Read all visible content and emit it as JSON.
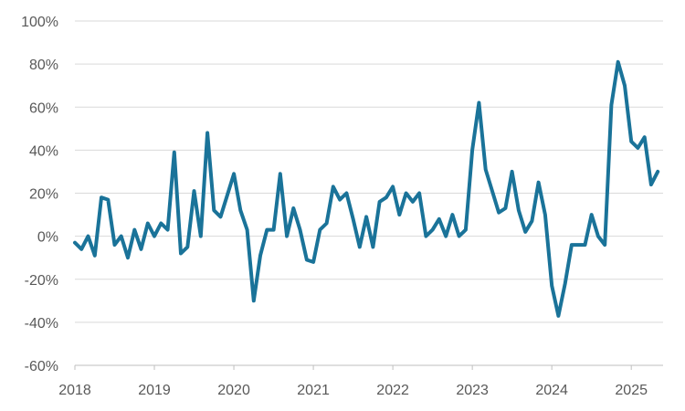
{
  "chart_data": {
    "type": "line",
    "title": "",
    "xlabel": "",
    "ylabel": "",
    "y_unit": "%",
    "ylim": [
      -60,
      100
    ],
    "y_ticks": [
      100,
      80,
      60,
      40,
      20,
      0,
      -20,
      -40,
      -60
    ],
    "y_tick_labels": [
      "100%",
      "80%",
      "60%",
      "40%",
      "20%",
      "0%",
      "-20%",
      "-40%",
      "-60%"
    ],
    "xlim": [
      2018.0,
      2025.4
    ],
    "x_ticks": [
      2018,
      2019,
      2020,
      2021,
      2022,
      2023,
      2024,
      2025
    ],
    "x_tick_labels": [
      "2018",
      "2019",
      "2020",
      "2021",
      "2022",
      "2023",
      "2024",
      "2025"
    ],
    "grid": true,
    "legend": "none",
    "series": [
      {
        "color": "#1A7399",
        "x": [
          2018.0,
          2018.083,
          2018.167,
          2018.25,
          2018.333,
          2018.417,
          2018.5,
          2018.583,
          2018.667,
          2018.75,
          2018.833,
          2018.917,
          2019.0,
          2019.083,
          2019.167,
          2019.25,
          2019.333,
          2019.417,
          2019.5,
          2019.583,
          2019.667,
          2019.75,
          2019.833,
          2019.917,
          2020.0,
          2020.083,
          2020.167,
          2020.25,
          2020.333,
          2020.417,
          2020.5,
          2020.583,
          2020.667,
          2020.75,
          2020.833,
          2020.917,
          2021.0,
          2021.083,
          2021.167,
          2021.25,
          2021.333,
          2021.417,
          2021.5,
          2021.583,
          2021.667,
          2021.75,
          2021.833,
          2021.917,
          2022.0,
          2022.083,
          2022.167,
          2022.25,
          2022.333,
          2022.417,
          2022.5,
          2022.583,
          2022.667,
          2022.75,
          2022.833,
          2022.917,
          2023.0,
          2023.083,
          2023.167,
          2023.25,
          2023.333,
          2023.417,
          2023.5,
          2023.583,
          2023.667,
          2023.75,
          2023.833,
          2023.917,
          2024.0,
          2024.083,
          2024.167,
          2024.25,
          2024.333,
          2024.417,
          2024.5,
          2024.583,
          2024.667,
          2024.75,
          2024.833,
          2024.917,
          2025.0,
          2025.083,
          2025.167,
          2025.25,
          2025.333
        ],
        "values": [
          -3,
          -6,
          0,
          -9,
          18,
          17,
          -4,
          0,
          -10,
          3,
          -6,
          6,
          0,
          6,
          3,
          39,
          -8,
          -5,
          21,
          0,
          48,
          12,
          9,
          19,
          29,
          12,
          3,
          -30,
          -9,
          3,
          3,
          29,
          0,
          13,
          3,
          -11,
          -12,
          3,
          6,
          23,
          17,
          20,
          8,
          -5,
          9,
          -5,
          16,
          18,
          23,
          10,
          20,
          16,
          20,
          0,
          3,
          8,
          0,
          10,
          0,
          3,
          40,
          62,
          31,
          21,
          11,
          13,
          30,
          12,
          2,
          7,
          25,
          10,
          -23,
          -37,
          -22,
          -4,
          -4,
          -4,
          10,
          0,
          -4,
          61,
          81,
          70,
          44,
          41,
          46,
          24,
          30
        ]
      }
    ]
  }
}
